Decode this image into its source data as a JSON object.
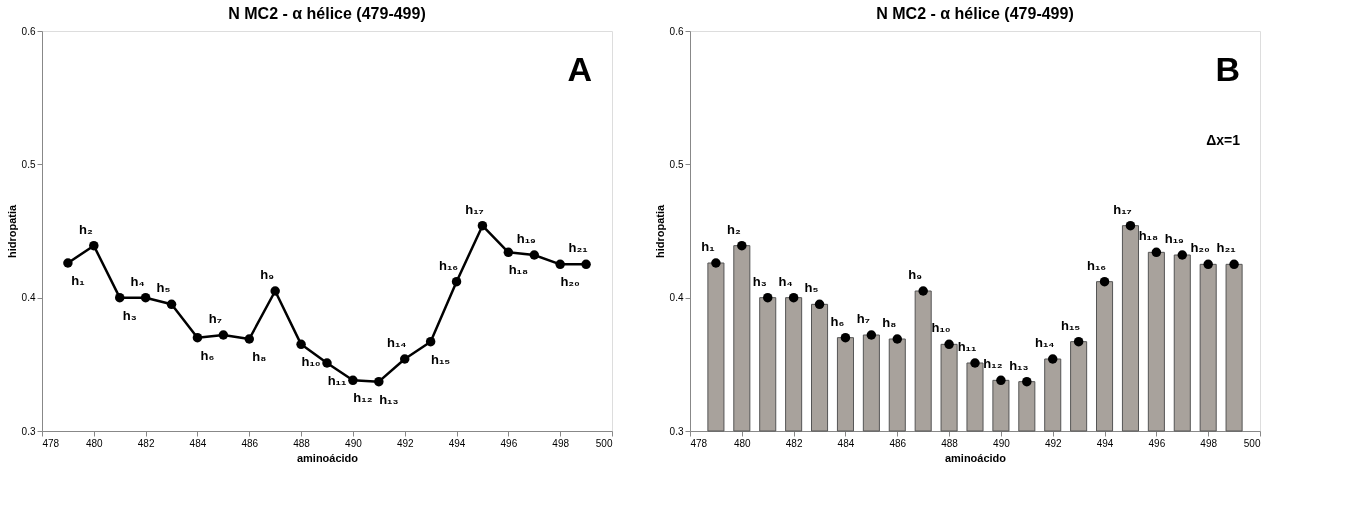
{
  "chart_data": [
    {
      "type": "line",
      "title": "N MC2 - α hélice (479-499)",
      "xlabel": "aminoácido",
      "ylabel": "hidropatia",
      "x": [
        479,
        480,
        481,
        482,
        483,
        484,
        485,
        486,
        487,
        488,
        489,
        490,
        491,
        492,
        493,
        494,
        495,
        496,
        497,
        498,
        499
      ],
      "series": [
        {
          "color": "#000000",
          "values": [
            0.426,
            0.439,
            0.4,
            0.4,
            0.395,
            0.37,
            0.372,
            0.369,
            0.405,
            0.365,
            0.351,
            0.338,
            0.337,
            0.354,
            0.367,
            0.412,
            0.454,
            0.434,
            0.432,
            0.425,
            0.425
          ]
        }
      ],
      "marker": "circle",
      "line_style": "solid",
      "grid": false,
      "xlim": [
        478,
        500
      ],
      "xticks": [
        478,
        480,
        482,
        484,
        486,
        488,
        490,
        492,
        494,
        496,
        498,
        500
      ],
      "ylim": [
        0.3,
        0.6
      ],
      "yticks": [
        0.3,
        0.4,
        0.5,
        0.6
      ],
      "annotations": [
        "A",
        {
          "text": "h₁",
          "x": 479,
          "y": 0.426
        },
        {
          "text": "h₂",
          "x": 480,
          "y": 0.439
        },
        {
          "text": "h₃",
          "x": 481,
          "y": 0.4
        },
        {
          "text": "h₄",
          "x": 482,
          "y": 0.4
        },
        {
          "text": "h₅",
          "x": 483,
          "y": 0.395
        },
        {
          "text": "h₆",
          "x": 484,
          "y": 0.37
        },
        {
          "text": "h₇",
          "x": 485,
          "y": 0.372
        },
        {
          "text": "h₈",
          "x": 486,
          "y": 0.369
        },
        {
          "text": "h₉",
          "x": 487,
          "y": 0.405
        },
        {
          "text": "h₁₀",
          "x": 488,
          "y": 0.365
        },
        {
          "text": "h₁₁",
          "x": 489,
          "y": 0.351
        },
        {
          "text": "h₁₂",
          "x": 490,
          "y": 0.338
        },
        {
          "text": "h₁₃",
          "x": 491,
          "y": 0.337
        },
        {
          "text": "h₁₄",
          "x": 492,
          "y": 0.354
        },
        {
          "text": "h₁₅",
          "x": 493,
          "y": 0.367
        },
        {
          "text": "h₁₆",
          "x": 494,
          "y": 0.412
        },
        {
          "text": "h₁₇",
          "x": 495,
          "y": 0.454
        },
        {
          "text": "h₁₈",
          "x": 496,
          "y": 0.434
        },
        {
          "text": "h₁₉",
          "x": 497,
          "y": 0.432
        },
        {
          "text": "h₂₀",
          "x": 498,
          "y": 0.425
        },
        {
          "text": "h₂₁",
          "x": 499,
          "y": 0.425
        }
      ]
    },
    {
      "type": "bar",
      "title": "N MC2 - α hélice (479-499)",
      "xlabel": "aminoácido",
      "ylabel": "hidropatia",
      "x": [
        479,
        480,
        481,
        482,
        483,
        484,
        485,
        486,
        487,
        488,
        489,
        490,
        491,
        492,
        493,
        494,
        495,
        496,
        497,
        498,
        499
      ],
      "series": [
        {
          "color": "#a8a29c",
          "values": [
            0.426,
            0.439,
            0.4,
            0.4,
            0.395,
            0.37,
            0.372,
            0.369,
            0.405,
            0.365,
            0.351,
            0.338,
            0.337,
            0.354,
            0.367,
            0.412,
            0.454,
            0.434,
            0.432,
            0.425,
            0.425
          ]
        },
        {
          "type": "scatter",
          "color": "#000000",
          "values": [
            0.426,
            0.439,
            0.4,
            0.4,
            0.395,
            0.37,
            0.372,
            0.369,
            0.405,
            0.365,
            0.351,
            0.338,
            0.337,
            0.354,
            0.367,
            0.412,
            0.454,
            0.434,
            0.432,
            0.425,
            0.425
          ]
        }
      ],
      "marker": "circle",
      "grid": false,
      "xlim": [
        478,
        500
      ],
      "xticks": [
        478,
        480,
        482,
        484,
        486,
        488,
        490,
        492,
        494,
        496,
        498,
        500
      ],
      "ylim": [
        0.3,
        0.6
      ],
      "yticks": [
        0.3,
        0.4,
        0.5,
        0.6
      ],
      "annotations": [
        "B",
        "Δx=1",
        {
          "text": "h₁",
          "x": 479,
          "y": 0.426
        },
        {
          "text": "h₂",
          "x": 480,
          "y": 0.439
        },
        {
          "text": "h₃",
          "x": 481,
          "y": 0.4
        },
        {
          "text": "h₄",
          "x": 482,
          "y": 0.4
        },
        {
          "text": "h₅",
          "x": 483,
          "y": 0.395
        },
        {
          "text": "h₆",
          "x": 484,
          "y": 0.37
        },
        {
          "text": "h₇",
          "x": 485,
          "y": 0.372
        },
        {
          "text": "h₈",
          "x": 486,
          "y": 0.369
        },
        {
          "text": "h₉",
          "x": 487,
          "y": 0.405
        },
        {
          "text": "h₁₀",
          "x": 488,
          "y": 0.365
        },
        {
          "text": "h₁₁",
          "x": 489,
          "y": 0.351
        },
        {
          "text": "h₁₂",
          "x": 490,
          "y": 0.338
        },
        {
          "text": "h₁₃",
          "x": 491,
          "y": 0.337
        },
        {
          "text": "h₁₄",
          "x": 492,
          "y": 0.354
        },
        {
          "text": "h₁₅",
          "x": 493,
          "y": 0.367
        },
        {
          "text": "h₁₆",
          "x": 494,
          "y": 0.412
        },
        {
          "text": "h₁₇",
          "x": 495,
          "y": 0.454
        },
        {
          "text": "h₁₈",
          "x": 496,
          "y": 0.434
        },
        {
          "text": "h₁₉",
          "x": 497,
          "y": 0.432
        },
        {
          "text": "h₂₀",
          "x": 498,
          "y": 0.425
        },
        {
          "text": "h₂₁",
          "x": 499,
          "y": 0.425
        }
      ]
    }
  ]
}
